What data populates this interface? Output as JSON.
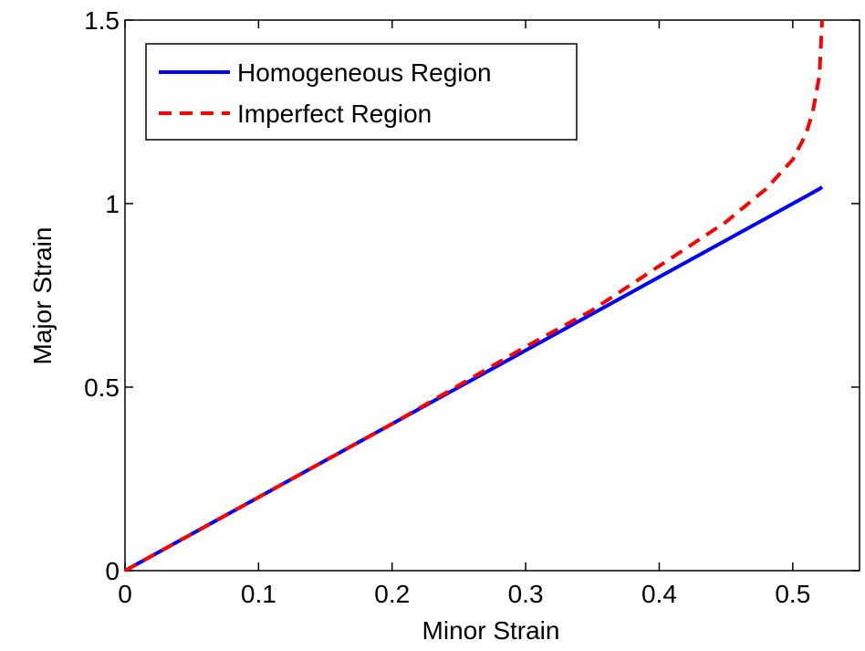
{
  "chart_data": {
    "type": "line",
    "xlabel": "Minor Strain",
    "ylabel": "Major Strain",
    "x": [
      0,
      0.1,
      0.2,
      0.3,
      0.35,
      0.4,
      0.45,
      0.48,
      0.5,
      0.51,
      0.515,
      0.52,
      0.522
    ],
    "series": [
      {
        "name": "Homogeneous Region",
        "color": "#0000ff",
        "dash": "solid",
        "values": [
          0,
          0.2,
          0.4,
          0.6,
          0.7,
          0.8,
          0.9,
          0.96,
          1.0,
          1.02,
          1.03,
          1.04,
          1.045
        ]
      },
      {
        "name": "Imperfect Region",
        "color": "#ff0000",
        "dash": "dashed",
        "values": [
          0,
          0.2,
          0.4,
          0.61,
          0.71,
          0.83,
          0.95,
          1.04,
          1.12,
          1.19,
          1.25,
          1.35,
          1.5
        ]
      }
    ],
    "xlim": [
      0,
      0.55
    ],
    "ylim": [
      0,
      1.5
    ],
    "xticks": [
      0,
      0.1,
      0.2,
      0.3,
      0.4,
      0.5
    ],
    "yticks": [
      0,
      0.5,
      1,
      1.5
    ],
    "legend": "upper-left",
    "grid": false
  }
}
